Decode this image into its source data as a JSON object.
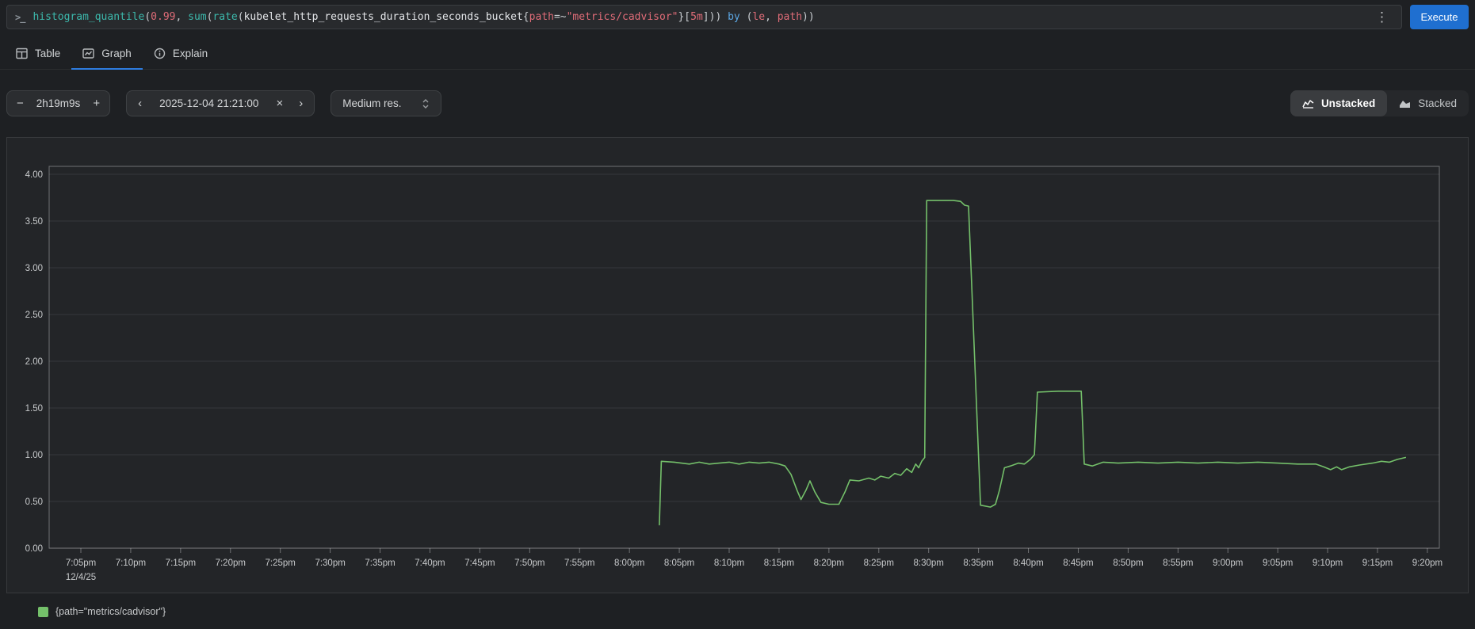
{
  "query_bar": {
    "prompt_glyph": ">_",
    "tokens": [
      {
        "text": "histogram_quantile",
        "type": "fn"
      },
      {
        "text": "(",
        "type": "paren"
      },
      {
        "text": "0.99",
        "type": "num"
      },
      {
        "text": ", ",
        "type": "paren"
      },
      {
        "text": "sum",
        "type": "fn"
      },
      {
        "text": "(",
        "type": "paren"
      },
      {
        "text": "rate",
        "type": "fn"
      },
      {
        "text": "(",
        "type": "paren"
      },
      {
        "text": "kubelet_http_requests_duration_seconds_bucket",
        "type": "metric"
      },
      {
        "text": "{",
        "type": "paren"
      },
      {
        "text": "path",
        "type": "label"
      },
      {
        "text": "=~",
        "type": "paren"
      },
      {
        "text": "\"metrics/cadvisor\"",
        "type": "str"
      },
      {
        "text": "}[",
        "type": "paren"
      },
      {
        "text": "5m",
        "type": "dur"
      },
      {
        "text": "])) ",
        "type": "paren"
      },
      {
        "text": "by",
        "type": "kw"
      },
      {
        "text": " (",
        "type": "paren"
      },
      {
        "text": "le",
        "type": "label"
      },
      {
        "text": ", ",
        "type": "paren"
      },
      {
        "text": "path",
        "type": "label"
      },
      {
        "text": "))",
        "type": "paren"
      }
    ],
    "kebab_glyph": "⋮",
    "execute_label": "Execute"
  },
  "tabs": {
    "items": [
      {
        "label": "Table"
      },
      {
        "label": "Graph"
      },
      {
        "label": "Explain"
      }
    ]
  },
  "controls": {
    "duration": {
      "minus": "−",
      "value": "2h19m9s",
      "plus": "+"
    },
    "datetime": {
      "prev": "‹",
      "value": "2025-12-04 21:21:00",
      "clear": "×",
      "next": "›"
    },
    "resolution": {
      "value": "Medium res."
    },
    "stacking": {
      "unstacked_label": "Unstacked",
      "stacked_label": "Stacked"
    }
  },
  "chart_data": {
    "type": "line",
    "title": "",
    "xlabel": "",
    "ylabel": "",
    "grid": "horizontal-only",
    "legend_position": "bottom-left",
    "x_axis_unit": "time-of-day, minutes after 7:00pm",
    "x_range_minutes": [
      1.82,
      141.2
    ],
    "y_range": [
      0,
      4.085
    ],
    "x_tick_start_minutes": 5,
    "x_tick_step_minutes": 5,
    "x_tick_labels": [
      "7:05pm",
      "7:10pm",
      "7:15pm",
      "7:20pm",
      "7:25pm",
      "7:30pm",
      "7:35pm",
      "7:40pm",
      "7:45pm",
      "7:50pm",
      "7:55pm",
      "8:00pm",
      "8:05pm",
      "8:10pm",
      "8:15pm",
      "8:20pm",
      "8:25pm",
      "8:30pm",
      "8:35pm",
      "8:40pm",
      "8:45pm",
      "8:50pm",
      "8:55pm",
      "9:00pm",
      "9:05pm",
      "9:10pm",
      "9:15pm",
      "9:20pm"
    ],
    "x_date_label": "12/4/25",
    "y_ticks": [
      {
        "value": 0.0,
        "label": "0.00"
      },
      {
        "value": 0.5,
        "label": "0.50"
      },
      {
        "value": 1.0,
        "label": "1.00"
      },
      {
        "value": 1.5,
        "label": "1.50"
      },
      {
        "value": 2.0,
        "label": "2.00"
      },
      {
        "value": 2.5,
        "label": "2.50"
      },
      {
        "value": 3.0,
        "label": "3.00"
      },
      {
        "value": 3.5,
        "label": "3.50"
      },
      {
        "value": 4.0,
        "label": "4.00"
      }
    ],
    "series": [
      {
        "name": "{path=\"metrics/cadvisor\"}",
        "color": "#74c06a",
        "points": [
          [
            63.0,
            0.25
          ],
          [
            63.2,
            0.93
          ],
          [
            64.5,
            0.92
          ],
          [
            66,
            0.9
          ],
          [
            67,
            0.92
          ],
          [
            68,
            0.9
          ],
          [
            69,
            0.91
          ],
          [
            70,
            0.92
          ],
          [
            71,
            0.9
          ],
          [
            72,
            0.92
          ],
          [
            73,
            0.91
          ],
          [
            74,
            0.92
          ],
          [
            75,
            0.9
          ],
          [
            75.6,
            0.88
          ],
          [
            76.2,
            0.79
          ],
          [
            76.8,
            0.62
          ],
          [
            77.2,
            0.52
          ],
          [
            77.7,
            0.62
          ],
          [
            78.1,
            0.72
          ],
          [
            78.6,
            0.6
          ],
          [
            79.2,
            0.49
          ],
          [
            80,
            0.47
          ],
          [
            81,
            0.47
          ],
          [
            81.6,
            0.6
          ],
          [
            82.1,
            0.73
          ],
          [
            83,
            0.72
          ],
          [
            84,
            0.75
          ],
          [
            84.6,
            0.73
          ],
          [
            85.2,
            0.77
          ],
          [
            86,
            0.75
          ],
          [
            86.6,
            0.8
          ],
          [
            87.2,
            0.78
          ],
          [
            87.8,
            0.85
          ],
          [
            88.3,
            0.81
          ],
          [
            88.7,
            0.9
          ],
          [
            89.0,
            0.86
          ],
          [
            89.3,
            0.93
          ],
          [
            89.6,
            0.97
          ],
          [
            89.8,
            3.72
          ],
          [
            92.5,
            3.72
          ],
          [
            93.2,
            3.71
          ],
          [
            93.6,
            3.67
          ],
          [
            94.0,
            3.66
          ],
          [
            95.2,
            0.46
          ],
          [
            96.2,
            0.44
          ],
          [
            96.7,
            0.47
          ],
          [
            97.1,
            0.62
          ],
          [
            97.6,
            0.86
          ],
          [
            98.2,
            0.88
          ],
          [
            99,
            0.91
          ],
          [
            99.6,
            0.9
          ],
          [
            100.2,
            0.95
          ],
          [
            100.6,
            1.0
          ],
          [
            100.9,
            1.67
          ],
          [
            103,
            1.68
          ],
          [
            105.3,
            1.68
          ],
          [
            105.6,
            0.9
          ],
          [
            106.4,
            0.88
          ],
          [
            107.5,
            0.92
          ],
          [
            109,
            0.91
          ],
          [
            111,
            0.92
          ],
          [
            113,
            0.91
          ],
          [
            115,
            0.92
          ],
          [
            117,
            0.91
          ],
          [
            119,
            0.92
          ],
          [
            121,
            0.91
          ],
          [
            123,
            0.92
          ],
          [
            125,
            0.91
          ],
          [
            127,
            0.9
          ],
          [
            128.8,
            0.9
          ],
          [
            129.6,
            0.87
          ],
          [
            130.3,
            0.84
          ],
          [
            130.9,
            0.87
          ],
          [
            131.4,
            0.84
          ],
          [
            132.2,
            0.87
          ],
          [
            133.2,
            0.89
          ],
          [
            134.5,
            0.91
          ],
          [
            135.4,
            0.93
          ],
          [
            136.2,
            0.92
          ],
          [
            137.0,
            0.95
          ],
          [
            137.8,
            0.97
          ]
        ]
      }
    ],
    "colors": {
      "gridline": "rgba(255,255,255,0.09)",
      "plot_border": "rgba(255,255,255,0.35)",
      "tick_text": "#c7c9cb"
    }
  },
  "legend": {
    "items": [
      {
        "swatch_color": "#74c06a",
        "label": "{path=\"metrics/cadvisor\"}"
      }
    ]
  }
}
